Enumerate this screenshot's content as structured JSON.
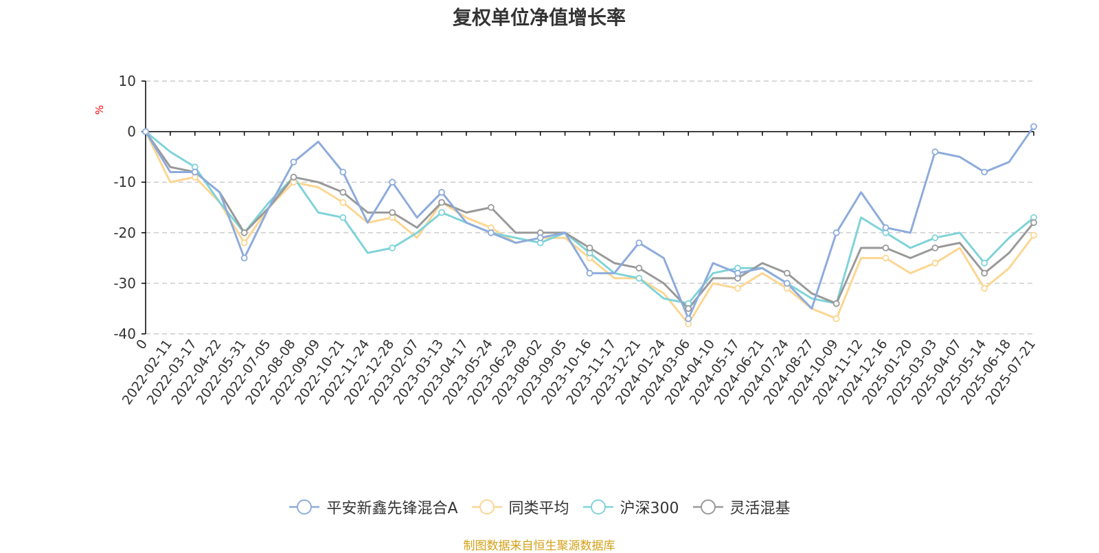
{
  "source_note": "制图数据来自恒生聚源数据库",
  "colors": {
    "axis": "#000000",
    "grid": "#cccccc",
    "unit": "#ff0000",
    "label": "#333333"
  },
  "chart_data": {
    "type": "line",
    "title": "复权单位净值增长率",
    "ylabel": "%",
    "xlabel": "",
    "ylim": [
      -40,
      10
    ],
    "yticks": [
      10,
      0,
      -10,
      -20,
      -30,
      -40
    ],
    "yticklabels": [
      "10",
      "0",
      "-10",
      "-20",
      "-30",
      "-40"
    ],
    "grid": true,
    "legend_position": "bottom",
    "xticklabels": [
      "0",
      "2022-02-11",
      "2022-03-17",
      "2022-04-22",
      "2022-05-31",
      "2022-07-05",
      "2022-08-08",
      "2022-09-09",
      "2022-10-21",
      "2022-11-24",
      "2022-12-28",
      "2023-02-07",
      "2023-03-13",
      "2023-04-17",
      "2023-05-24",
      "2023-06-29",
      "2023-08-02",
      "2023-09-05",
      "2023-10-16",
      "2023-11-17",
      "2023-12-21",
      "2024-01-24",
      "2024-03-06",
      "2024-04-10",
      "2024-05-17",
      "2024-06-21",
      "2024-07-24",
      "2024-08-27",
      "2024-10-09",
      "2024-11-12",
      "2024-12-16",
      "2025-01-20",
      "2025-03-03",
      "2025-04-07",
      "2025-05-14",
      "2025-06-18",
      "2025-07-21"
    ],
    "series": [
      {
        "name": "平安新鑫先锋混合A",
        "color": "#8dabdb",
        "values": [
          0,
          -8,
          -8,
          -12,
          -25,
          -15,
          -6,
          -2,
          -8,
          -18,
          -10,
          -17,
          -12,
          -18,
          -20,
          -22,
          -21,
          -20,
          -28,
          -28,
          -22,
          -25,
          -37,
          -26,
          -28,
          -27,
          -30,
          -35,
          -20,
          -12,
          -19,
          -20,
          -4,
          -5,
          -8,
          -6,
          1
        ]
      },
      {
        "name": "同类平均",
        "color": "#fcd692",
        "values": [
          0,
          -10,
          -9,
          -14,
          -22,
          -15,
          -10,
          -11,
          -14,
          -18,
          -17,
          -21,
          -14,
          -17,
          -19,
          -22,
          -21,
          -21,
          -25,
          -29,
          -29,
          -32,
          -38,
          -30,
          -31,
          -28,
          -31,
          -35,
          -37,
          -25,
          -25,
          -28,
          -26,
          -23,
          -31,
          -27,
          -20.5
        ]
      },
      {
        "name": "沪深300",
        "color": "#7fd3d9",
        "values": [
          0,
          -4,
          -7,
          -14,
          -20,
          -14,
          -9,
          -16,
          -17,
          -24,
          -23,
          -20,
          -16,
          -18,
          -20,
          -21,
          -22,
          -20,
          -24,
          -28,
          -29,
          -33,
          -34,
          -28,
          -27,
          -27,
          -30,
          -33,
          -34,
          -17,
          -20,
          -23,
          -21,
          -20,
          -26,
          -21,
          -17
        ]
      },
      {
        "name": "灵活混基",
        "color": "#999999",
        "values": [
          0,
          -7,
          -8,
          -12,
          -20,
          -15,
          -9,
          -10,
          -12,
          -16,
          -16,
          -19,
          -14,
          -16,
          -15,
          -20,
          -20,
          -20,
          -23,
          -26,
          -27,
          -30,
          -35,
          -29,
          -29,
          -26,
          -28,
          -32,
          -34,
          -23,
          -23,
          -25,
          -23,
          -22,
          -28,
          -24,
          -18
        ]
      }
    ]
  }
}
